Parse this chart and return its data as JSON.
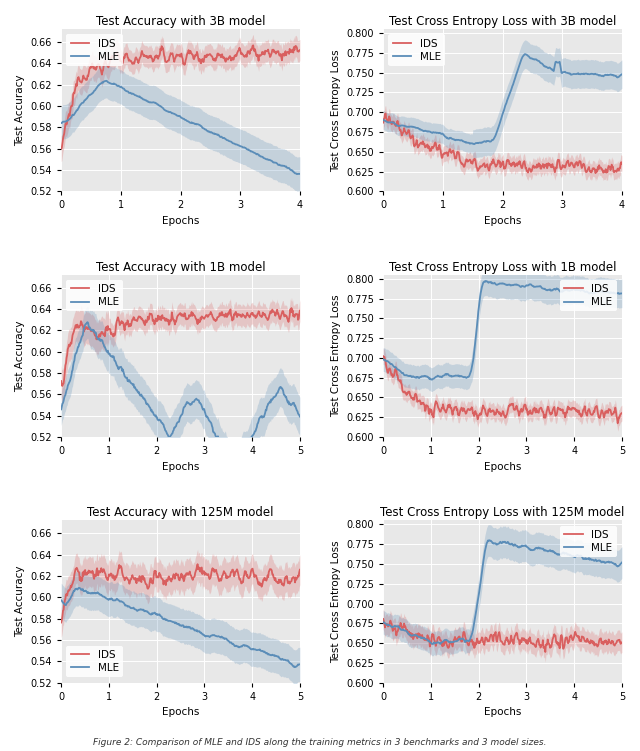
{
  "titles": [
    [
      "Test Accuracy with 3B model",
      "Test Cross Entropy Loss with 3B model"
    ],
    [
      "Test Accuracy with 1B model",
      "Test Cross Entropy Loss with 1B model"
    ],
    [
      "Test Accuracy with 125M model",
      "Test Cross Entropy Loss with 125M model"
    ]
  ],
  "xlabel": "Epochs",
  "ylabel_acc": "Test Accuracy",
  "ylabel_loss": "Test Cross Entropy Loss",
  "ylim_acc": [
    0.52,
    0.672
  ],
  "ylim_loss": [
    0.6,
    0.805
  ],
  "yticks_acc": [
    0.52,
    0.54,
    0.56,
    0.58,
    0.6,
    0.62,
    0.64,
    0.66
  ],
  "yticks_loss": [
    0.6,
    0.625,
    0.65,
    0.675,
    0.7,
    0.725,
    0.75,
    0.775,
    0.8
  ],
  "xticks_3b": [
    0,
    1,
    2,
    3,
    4
  ],
  "xticks_5ep": [
    0,
    1,
    2,
    3,
    4,
    5
  ],
  "ids_color": "#D95F5F",
  "mle_color": "#5B8DB8",
  "ids_fill_alpha": 0.25,
  "mle_fill_alpha": 0.25,
  "bg_color": "#E8E8E8",
  "grid_color": "#FFFFFF",
  "line_width": 1.3,
  "fig_caption": "Figure 2: Comparison of MLE and IDS along the training metrics in 3 benchmarks and 3 model sizes.",
  "seed": 12345
}
